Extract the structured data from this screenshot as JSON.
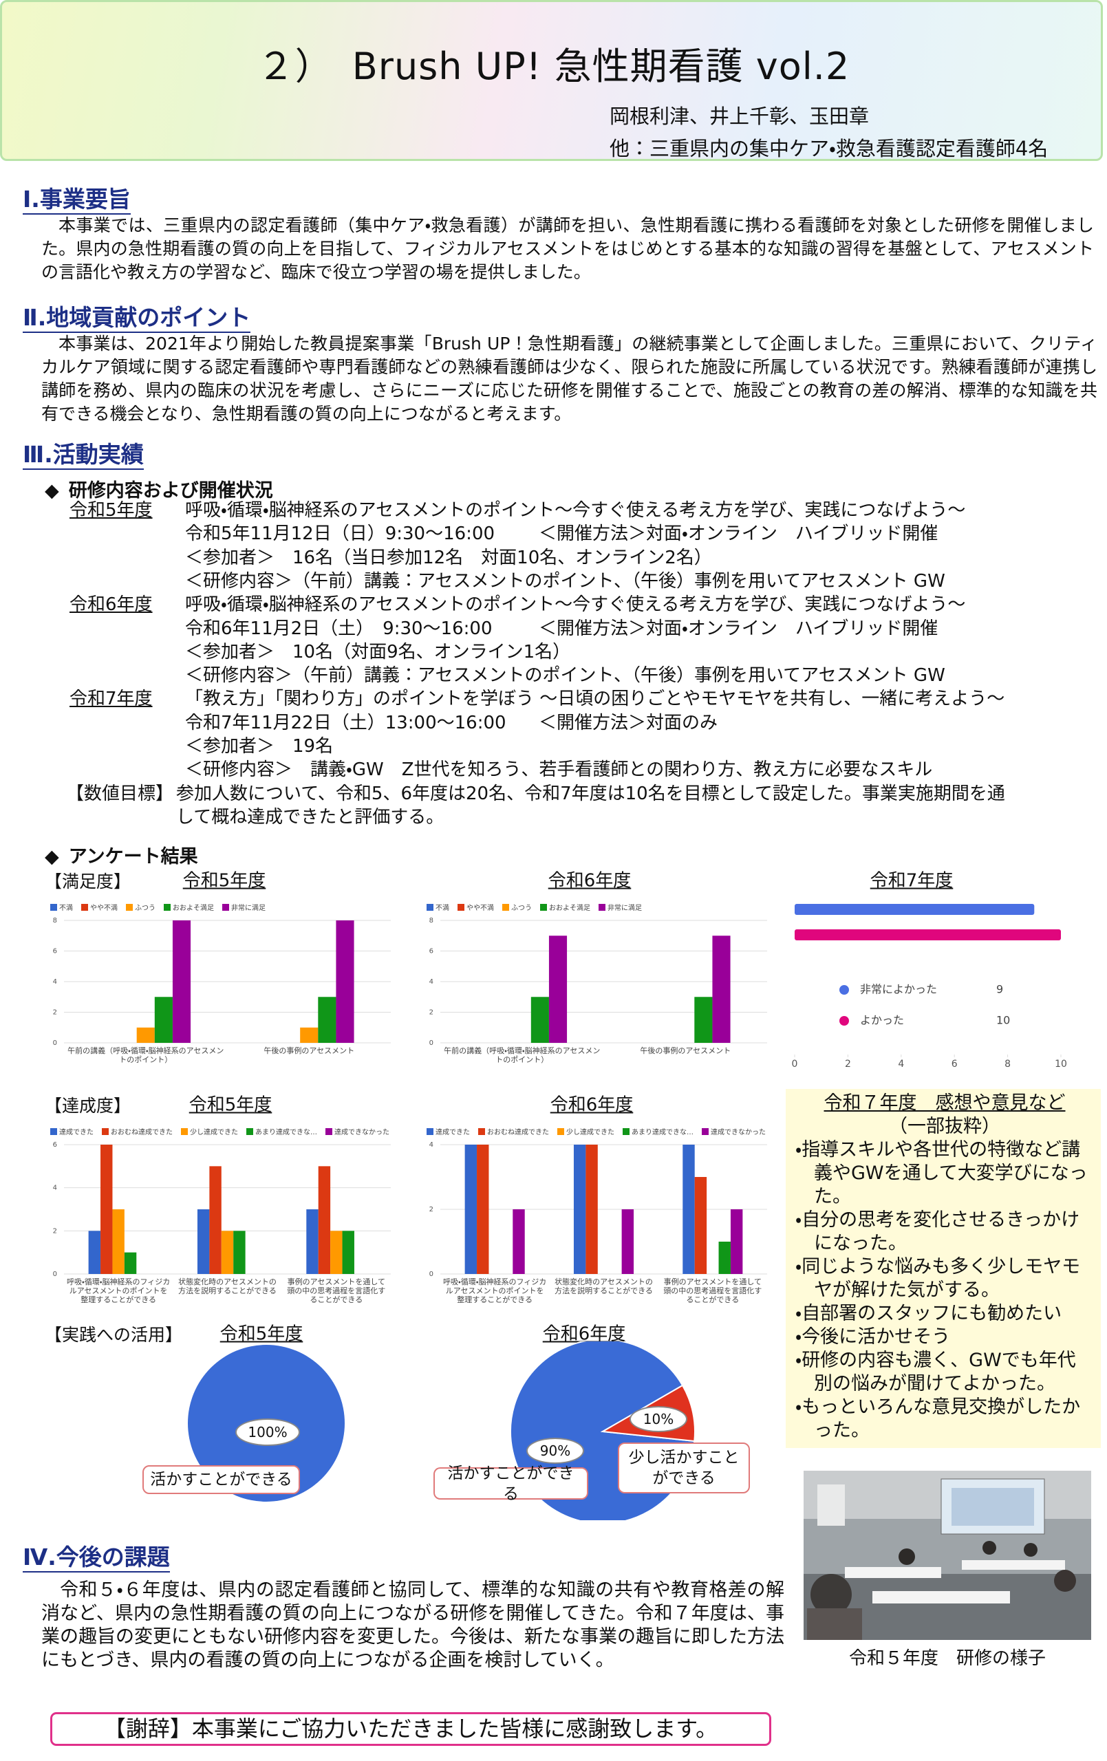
{
  "header": {
    "title": "２）　Brush UP! 急性期看護 vol.2",
    "authors": "岡根利津、井上千彰、玉田章",
    "others": "他：三重県内の集中ケア・救急看護認定看護師4名"
  },
  "section1": {
    "heading": "Ⅰ.事業要旨",
    "body": "本事業では、三重県内の認定看護師（集中ケア・救急看護）が講師を担い、急性期看護に携わる看護師を対象とした研修を開催しました。県内の急性期看護の質の向上を目指して、フィジカルアセスメントをはじめとする基本的な知識の習得を基盤として、アセスメントの言語化や教え方の学習など、臨床で役立つ学習の場を提供しました。"
  },
  "section2": {
    "heading": "Ⅱ.地域貢献のポイント",
    "body": "本事業は、2021年より開始した教員提案事業「Brush UP！急性期看護」の継続事業として企画しました。三重県において、クリティカルケア領域に関する認定看護師や専門看護師などの熟練看護師は少なく、限られた施設に所属している状況です。熟練看護師が連携し講師を務め、県内の臨床の状況を考慮し、さらにニーズに応じた研修を開催することで、施設ごとの教育の差の解消、標準的な知識を共有できる機会となり、急性期看護の質の向上につながると考えます。"
  },
  "section3": {
    "heading": "Ⅲ.活動実績",
    "training": {
      "heading": "研修内容および開催状況",
      "years": [
        {
          "year": "令和5年度",
          "theme": "呼吸・循環・脳神経系のアセスメントのポイント～今すぐ使える考え方を学び、実践につなげよう～",
          "date": "令和5年11月12日（日）9:30～16:00",
          "method": "＜開催方法＞対面・オンライン　ハイブリッド開催",
          "participants": "＜参加者＞　16名（当日参加12名　対面10名、オンライン2名）",
          "content": "＜研修内容＞（午前）講義：アセスメントのポイント、（午後）事例を用いてアセスメント GW"
        },
        {
          "year": "令和6年度",
          "theme": "呼吸・循環・脳神経系のアセスメントのポイント～今すぐ使える考え方を学び、実践につなげよう～",
          "date": "令和6年11月2日（土）　9:30～16:00",
          "method": "＜開催方法＞対面・オンライン　ハイブリッド開催",
          "participants": "＜参加者＞　10名（対面9名、オンライン1名）",
          "content": "＜研修内容＞（午前）講義：アセスメントのポイント、（午後）事例を用いてアセスメント GW"
        },
        {
          "year": "令和7年度",
          "theme": "「教え方」「関わり方」のポイントを学ぼう ～日頃の困りごとやモヤモヤを共有し、一緒に考えよう～",
          "date": "令和7年11月22日（土）13:00～16:00",
          "method": "＜開催方法＞対面のみ",
          "participants": "＜参加者＞　19名",
          "content": "＜研修内容＞　講義・GW　Z世代を知ろう、若手看護師との関わり方、教え方に必要なスキル"
        }
      ]
    },
    "target": {
      "label": "【数値目標】",
      "text": "参加人数について、令和5、6年度は20名、令和7年度は10名を目標として設定した。事業実施期間を通して概ね達成できたと評価する。"
    },
    "survey": {
      "heading": "アンケート結果",
      "satisfaction": "【満足度】",
      "achievement": "【達成度】",
      "application": "【実践への活用】"
    }
  },
  "chart_data": [
    {
      "type": "bar",
      "title": "令和5年度",
      "categories": [
        "午前の講義（呼吸・循環・脳神経系のアセスメントのポイント）",
        "午後の事例のアセスメント"
      ],
      "series": [
        {
          "name": "不満",
          "color": "#3366cc",
          "values": [
            0,
            0
          ]
        },
        {
          "name": "やや不満",
          "color": "#dc3912",
          "values": [
            0,
            0
          ]
        },
        {
          "name": "ふつう",
          "color": "#ff9900",
          "values": [
            1,
            1
          ]
        },
        {
          "name": "おおよそ満足",
          "color": "#109618",
          "values": [
            3,
            3
          ]
        },
        {
          "name": "非常に満足",
          "color": "#990099",
          "values": [
            8,
            8
          ]
        }
      ],
      "ylim": [
        0,
        8
      ],
      "yticks": [
        0,
        2,
        4,
        6,
        8
      ],
      "grid": true
    },
    {
      "type": "bar",
      "title": "令和6年度",
      "categories": [
        "午前の講義（呼吸・循環・脳神経系のアセスメントのポイント）",
        "午後の事例のアセスメント"
      ],
      "series": [
        {
          "name": "不満",
          "color": "#3366cc",
          "values": [
            0,
            0
          ]
        },
        {
          "name": "やや不満",
          "color": "#dc3912",
          "values": [
            0,
            0
          ]
        },
        {
          "name": "ふつう",
          "color": "#ff9900",
          "values": [
            0,
            0
          ]
        },
        {
          "name": "おおよそ満足",
          "color": "#109618",
          "values": [
            3,
            3
          ]
        },
        {
          "name": "非常に満足",
          "color": "#990099",
          "values": [
            7,
            7
          ]
        }
      ],
      "ylim": [
        0,
        8
      ],
      "yticks": [
        0,
        2,
        4,
        6,
        8
      ],
      "grid": true
    },
    {
      "type": "barh",
      "title": "令和7年度",
      "categories": [
        "非常によかった",
        "よかった"
      ],
      "values": [
        9,
        10
      ],
      "colors": [
        "#4a6fe3",
        "#e0067d"
      ],
      "xlim": [
        0,
        10
      ],
      "xticks": [
        0,
        2,
        4,
        6,
        8,
        10
      ]
    },
    {
      "type": "bar",
      "title": "令和5年度",
      "categories": [
        "呼吸・循環・脳神経系のフィジカルアセスメントのポイントを整理することができる",
        "状態変化時のアセスメントの方法を説明することができる",
        "事例のアセスメントを通して頭の中の思考過程を言語化することができる"
      ],
      "series": [
        {
          "name": "達成できた",
          "color": "#3366cc",
          "values": [
            2,
            3,
            3
          ]
        },
        {
          "name": "おおむね達成できた",
          "color": "#dc3912",
          "values": [
            6,
            5,
            5
          ]
        },
        {
          "name": "少し達成できた",
          "color": "#ff9900",
          "values": [
            3,
            2,
            2
          ]
        },
        {
          "name": "あまり達成できな…",
          "color": "#109618",
          "values": [
            1,
            2,
            2
          ]
        },
        {
          "name": "達成できなかった",
          "color": "#990099",
          "values": [
            0,
            0,
            0
          ]
        }
      ],
      "ylim": [
        0,
        6
      ],
      "yticks": [
        0,
        2,
        4,
        6
      ],
      "grid": true
    },
    {
      "type": "bar",
      "title": "令和6年度",
      "categories": [
        "呼吸・循環・脳神経系のフィジカルアセスメントのポイントを整理することができる",
        "状態変化時のアセスメントの方法を説明することができる",
        "事例のアセスメントを通して頭の中の思考過程を言語化することができる"
      ],
      "series": [
        {
          "name": "達成できた",
          "color": "#3366cc",
          "values": [
            4,
            4,
            4
          ]
        },
        {
          "name": "おおむね達成できた",
          "color": "#dc3912",
          "values": [
            4,
            4,
            3
          ]
        },
        {
          "name": "少し達成できた",
          "color": "#ff9900",
          "values": [
            0,
            0,
            0
          ]
        },
        {
          "name": "あまり達成できな…",
          "color": "#109618",
          "values": [
            0,
            0,
            1
          ]
        },
        {
          "name": "達成できなかった",
          "color": "#990099",
          "values": [
            2,
            2,
            2
          ]
        }
      ],
      "ylim": [
        0,
        4
      ],
      "yticks": [
        0,
        2,
        4
      ],
      "grid": true
    },
    {
      "type": "pie",
      "title": "令和5年度",
      "categories": [
        "活かすことができる"
      ],
      "values": [
        100
      ],
      "value_labels": [
        "100%"
      ],
      "colors": [
        "#3a6bd6"
      ]
    },
    {
      "type": "pie",
      "title": "令和6年度",
      "categories": [
        "活かすことができる",
        "少し活かすことができる"
      ],
      "values": [
        90,
        10
      ],
      "value_labels": [
        "90%",
        "10%"
      ],
      "colors": [
        "#3a6bd6",
        "#e0321f"
      ]
    }
  ],
  "comments": {
    "title": "令和７年度　感想や意見など",
    "subtitle": "（一部抜粋）",
    "items": [
      "指導スキルや各世代の特徴など講義やGWを通して大変学びになった。",
      "自分の思考を変化させるきっかけになった。",
      "同じような悩みも多く少しモヤモヤが解けた気がする。",
      "自部署のスタッフにも勧めたい",
      "今後に活かせそう",
      "研修の内容も濃く、GWでも年代別の悩みが聞けてよかった。",
      "もっといろんな意見交換がしたかった。"
    ]
  },
  "photo": {
    "caption": "令和５年度　研修の様子"
  },
  "section4": {
    "heading": "Ⅳ.今後の課題",
    "body": "令和５・６年度は、県内の認定看護師と協同して、標準的な知識の共有や教育格差の解消など、県内の急性期看護の質の向上につながる研修を開催してきた。令和７年度は、事業の趣旨の変更にともない研修内容を変更した。今後は、新たな事業の趣旨に即した方法にもとづき、県内の看護の質の向上につながる企画を検討していく。"
  },
  "thanks": "【謝辞】本事業にご協力いただきました皆様に感謝致します。"
}
